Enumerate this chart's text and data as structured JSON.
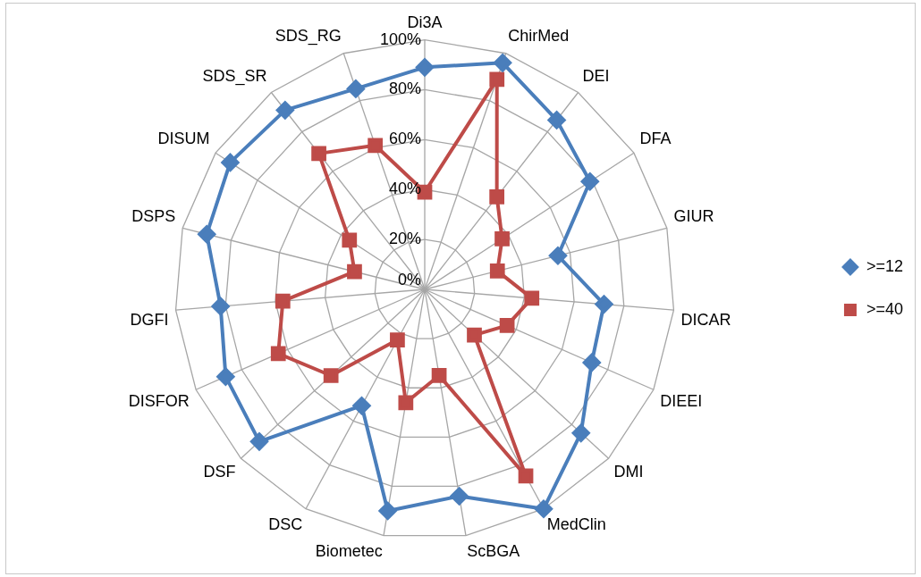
{
  "chart_data": {
    "type": "radar",
    "categories": [
      "Di3A",
      "ChirMed",
      "DEI",
      "DFA",
      "GIUR",
      "DICAR",
      "DIEEI",
      "DMI",
      "MedClin",
      "ScBGA",
      "Biometec",
      "DSC",
      "DSF",
      "DISFOR",
      "DGFI",
      "DSPS",
      "DISUM",
      "SDS_SR",
      "SDS_RG"
    ],
    "series": [
      {
        "name": ">=12",
        "color": "#4a7ebb",
        "marker": "diamond",
        "values": [
          89,
          96,
          86,
          79,
          55,
          72,
          73,
          85,
          100,
          84,
          90,
          53,
          90,
          87,
          82,
          90,
          93,
          91,
          85
        ]
      },
      {
        "name": ">=40",
        "color": "#be4b48",
        "marker": "square",
        "values": [
          39,
          89,
          47,
          37,
          30,
          43,
          36,
          27,
          85,
          35,
          46,
          23,
          51,
          64,
          57,
          29,
          36,
          69,
          61
        ]
      }
    ],
    "ylim": [
      0,
      100
    ],
    "yticks": [
      {
        "value": 0,
        "label": "0%"
      },
      {
        "value": 20,
        "label": "20%"
      },
      {
        "value": 40,
        "label": "40%"
      },
      {
        "value": 60,
        "label": "60%"
      },
      {
        "value": 80,
        "label": "80%"
      },
      {
        "value": 100,
        "label": "100%"
      }
    ],
    "grid": true,
    "legend": "right"
  }
}
